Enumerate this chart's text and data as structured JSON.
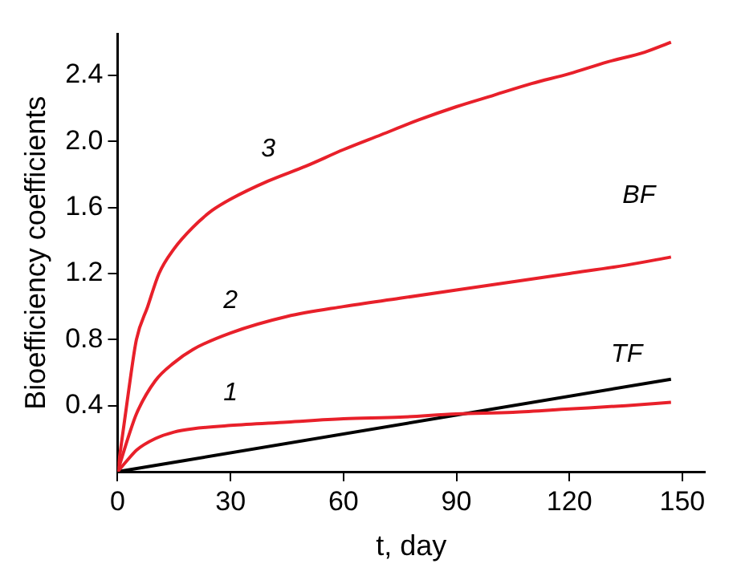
{
  "chart_data": {
    "type": "line",
    "xlabel": "t, day",
    "ylabel": "Bioefficiency coefficients",
    "xlim": [
      0,
      156
    ],
    "xticks": [
      0,
      30,
      60,
      90,
      120,
      150
    ],
    "ylim": [
      0,
      2.65
    ],
    "yticks": [
      0.4,
      0.8,
      1.2,
      1.6,
      {
        "value": 2,
        "label": "2.0"
      },
      2.4
    ],
    "grid": false,
    "legend": false,
    "marker": "none",
    "line_style": "solid",
    "series": [
      {
        "name": "3",
        "color": "#e8202a",
        "x": [
          0,
          3,
          5,
          8,
          11,
          15,
          20,
          25,
          30,
          40,
          50,
          60,
          70,
          80,
          90,
          100,
          110,
          120,
          130,
          140,
          147
        ],
        "values": [
          0,
          0.5,
          0.8,
          1.0,
          1.2,
          1.35,
          1.48,
          1.58,
          1.65,
          1.76,
          1.85,
          1.95,
          2.04,
          2.13,
          2.21,
          2.28,
          2.35,
          2.41,
          2.48,
          2.54,
          2.6
        ]
      },
      {
        "name": "2",
        "color": "#e8202a",
        "x": [
          0,
          3,
          5,
          10,
          15,
          20,
          30,
          45,
          60,
          75,
          90,
          105,
          120,
          135,
          147
        ],
        "values": [
          0,
          0.22,
          0.35,
          0.55,
          0.66,
          0.74,
          0.84,
          0.94,
          1.0,
          1.05,
          1.1,
          1.15,
          1.2,
          1.25,
          1.3
        ]
      },
      {
        "name": "1",
        "color": "#e8202a",
        "x": [
          0,
          3,
          5,
          10,
          15,
          20,
          30,
          45,
          60,
          75,
          90,
          105,
          120,
          135,
          147
        ],
        "values": [
          0,
          0.08,
          0.13,
          0.2,
          0.24,
          0.26,
          0.28,
          0.3,
          0.32,
          0.33,
          0.35,
          0.36,
          0.38,
          0.4,
          0.42
        ]
      },
      {
        "name": "TF",
        "color": "#000000",
        "x": [
          0,
          147
        ],
        "values": [
          0,
          0.56
        ]
      }
    ],
    "annotations": [
      "BF"
    ]
  }
}
